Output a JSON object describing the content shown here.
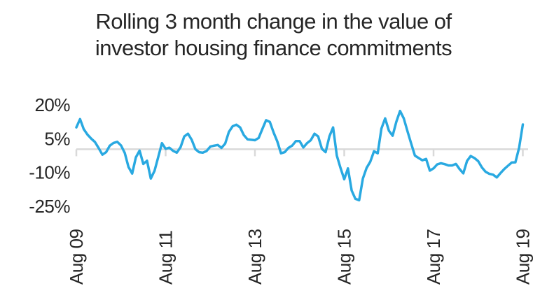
{
  "title": {
    "line1": "Rolling 3 month change in the value of",
    "line2": "investor housing finance commitments"
  },
  "chart_data": {
    "type": "line",
    "title": "Rolling 3 month change in the value of investor housing finance commitments",
    "series_name": "Rolling 3 month % change in investor housing finance commitments",
    "x_unit": "month",
    "x_start": "Aug 2009",
    "x_end": "Aug 2019",
    "points_per_year": 12,
    "x_tick_labels": [
      "Aug 09",
      "Aug 11",
      "Aug 13",
      "Aug 15",
      "Aug 17",
      "Aug 19"
    ],
    "x_tick_month_indices": [
      0,
      24,
      48,
      72,
      96,
      120
    ],
    "y_tick_labels": [
      "20%",
      "5%",
      "-10%",
      "-25%"
    ],
    "y_tick_values": [
      20,
      5,
      -10,
      -25
    ],
    "ylim": [
      -27,
      22
    ],
    "grid": "zero-line-only-with-down-ticks",
    "legend": "none",
    "values": [
      10.0,
      13.7,
      9.2,
      6.8,
      5.0,
      3.5,
      0.8,
      -2.1,
      -1.0,
      1.9,
      3.1,
      3.6,
      2.0,
      -1.3,
      -7.5,
      -10.5,
      -3.3,
      -0.3,
      -6.2,
      -4.8,
      -12.7,
      -9.3,
      -3.2,
      3.0,
      0.5,
      1.0,
      -0.4,
      -1.2,
      1.2,
      6.0,
      7.2,
      4.5,
      0.3,
      -1.0,
      -1.2,
      -0.5,
      1.5,
      1.9,
      2.2,
      0.9,
      2.8,
      8.0,
      10.5,
      11.2,
      10.0,
      6.6,
      4.7,
      4.5,
      4.3,
      5.3,
      9.3,
      13.2,
      12.4,
      7.8,
      3.8,
      -1.5,
      -1.0,
      0.9,
      1.9,
      3.9,
      3.9,
      1.1,
      3.0,
      4.3,
      7.2,
      6.0,
      0.5,
      -1.0,
      6.0,
      10.0,
      -2.5,
      -8.0,
      -13.0,
      -8.2,
      -18.0,
      -21.7,
      -22.3,
      -12.7,
      -8.0,
      -5.2,
      -0.6,
      -1.5,
      9.5,
      14.0,
      8.5,
      6.3,
      12.5,
      17.3,
      14.0,
      8.3,
      2.8,
      -2.5,
      -3.6,
      -4.6,
      -4.0,
      -9.2,
      -8.2,
      -6.4,
      -5.9,
      -6.3,
      -6.9,
      -6.9,
      -6.2,
      -8.5,
      -10.4,
      -4.9,
      -2.7,
      -3.6,
      -5.0,
      -7.8,
      -9.7,
      -10.6,
      -11.0,
      -12.2,
      -10.3,
      -8.5,
      -7.0,
      -5.6,
      -5.5,
      1.0,
      11.3
    ]
  },
  "style": {
    "line_color": "#29A9E1",
    "grid_color": "#D9D9D9",
    "text_color": "#262626",
    "background": "#FFFFFF"
  }
}
